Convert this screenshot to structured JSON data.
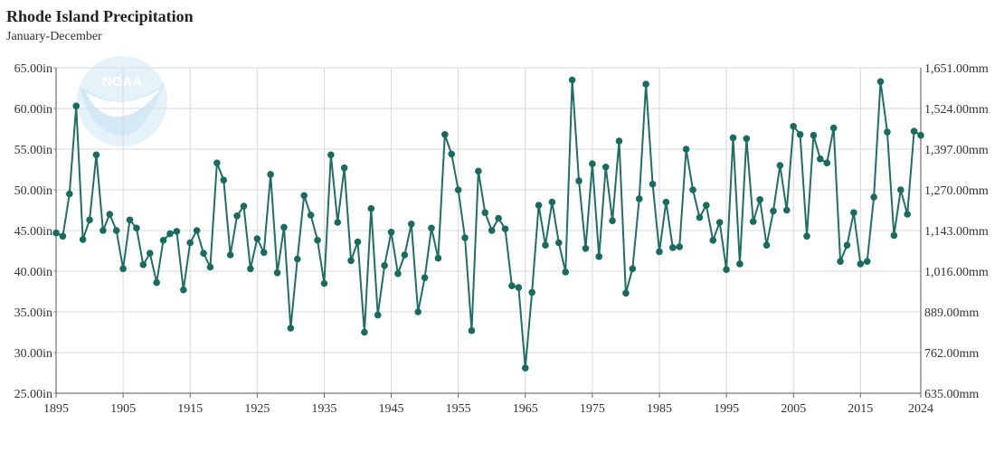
{
  "chart_data": {
    "type": "line",
    "title": "Rhode Island Precipitation",
    "subtitle": "January-December",
    "xlabel": "",
    "ylabel": "",
    "xlim": [
      1895,
      2024
    ],
    "ylim": [
      25,
      65
    ],
    "y2lim": [
      635,
      1651
    ],
    "grid": true,
    "x_ticks": [
      "1895",
      "1905",
      "1915",
      "1925",
      "1935",
      "1945",
      "1955",
      "1965",
      "1975",
      "1985",
      "1995",
      "2005",
      "2015",
      "2024"
    ],
    "y_ticks": [
      "25.00in",
      "30.00in",
      "35.00in",
      "40.00in",
      "45.00in",
      "50.00in",
      "55.00in",
      "60.00in",
      "65.00in"
    ],
    "y2_ticks": [
      "635.00mm",
      "762.00mm",
      "889.00mm",
      "1,016.00mm",
      "1,143.00mm",
      "1,270.00mm",
      "1,397.00mm",
      "1,524.00mm",
      "1,651.00mm"
    ],
    "line_color": "#1f6f65",
    "marker_color": "#176b5f",
    "series": [
      {
        "x_start": 1895,
        "values": [
          44.7,
          44.3,
          49.5,
          60.3,
          43.9,
          46.3,
          54.3,
          45.0,
          47.0,
          45.0,
          40.3,
          46.3,
          45.3,
          40.8,
          42.2,
          38.6,
          43.8,
          44.6,
          44.9,
          37.7,
          43.5,
          45.0,
          42.2,
          40.5,
          53.3,
          51.2,
          42.0,
          46.8,
          48.0,
          40.3,
          44.0,
          42.3,
          51.9,
          39.8,
          45.4,
          33.0,
          41.5,
          49.3,
          46.9,
          43.8,
          38.5,
          54.3,
          46.0,
          52.7,
          41.3,
          43.6,
          32.5,
          47.7,
          34.6,
          40.7,
          44.8,
          39.7,
          42.0,
          45.8,
          35.0,
          39.2,
          45.3,
          41.6,
          56.8,
          54.4,
          50.0,
          44.1,
          32.7,
          52.3,
          47.2,
          45.0,
          46.5,
          45.2,
          38.2,
          38.0,
          28.1,
          37.4,
          48.1,
          43.2,
          48.5,
          43.5,
          39.9,
          63.5,
          51.1,
          42.8,
          53.2,
          41.8,
          52.8,
          46.2,
          56.0,
          37.3,
          40.3,
          48.9,
          63.0,
          50.7,
          42.4,
          48.5,
          42.9,
          43.0,
          55.0,
          50.0,
          46.6,
          48.1,
          43.8,
          46.0,
          40.2,
          56.4,
          40.9,
          56.3,
          46.1,
          48.8,
          43.2,
          47.4,
          53.0,
          47.5,
          57.8,
          56.8,
          44.3,
          56.7,
          53.8,
          53.3,
          57.6,
          41.2,
          43.2,
          47.2,
          40.9,
          41.2,
          49.1,
          63.3,
          57.1,
          44.4,
          50.0,
          47.0,
          57.2,
          56.7
        ]
      }
    ]
  }
}
